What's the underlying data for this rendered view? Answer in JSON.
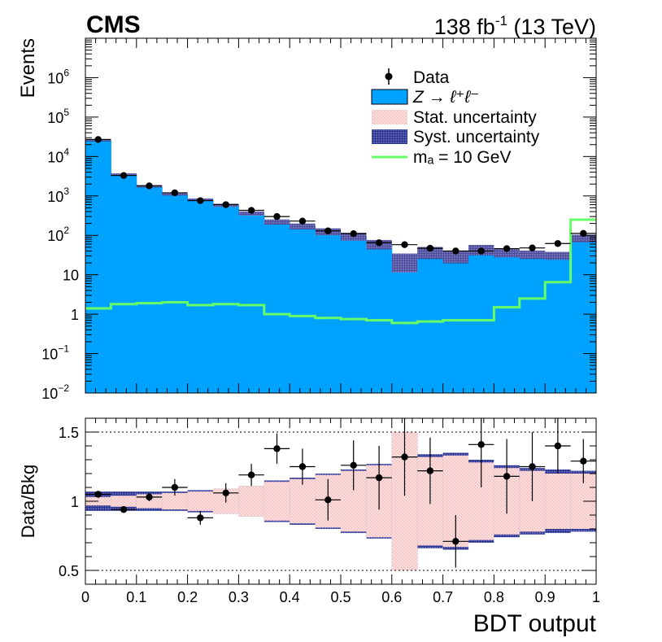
{
  "header": {
    "experiment": "CMS",
    "lumi_main": "138 fb",
    "lumi_sup": "-1",
    "lumi_tail": " (13 TeV)"
  },
  "colors": {
    "background_fill": "#00a2ff",
    "signal_line": "#66ff66",
    "stat_band": "#f8cccc",
    "syst_band": "#3a3f9a",
    "data_marker": "#000000"
  },
  "legend": {
    "data": "Data",
    "background": "Z → ℓ⁺ℓ⁻",
    "stat": "Stat. uncertainty",
    "syst": "Syst. uncertainty",
    "signal": "mₐ = 10 GeV"
  },
  "chart_data": [
    {
      "type": "bar",
      "panel": "main",
      "xlabel": "",
      "ylabel": "Events",
      "yscale": "log",
      "xlim": [
        0,
        1
      ],
      "ylim": [
        0.01,
        10000000
      ],
      "y_ticks": [
        {
          "value": 0.01,
          "base": "10",
          "exp": "−2"
        },
        {
          "value": 0.1,
          "base": "10",
          "exp": "−1"
        },
        {
          "value": 1,
          "base": "1",
          "exp": ""
        },
        {
          "value": 10,
          "base": "10",
          "exp": ""
        },
        {
          "value": 100,
          "base": "10",
          "exp": "2"
        },
        {
          "value": 1000,
          "base": "10",
          "exp": "3"
        },
        {
          "value": 10000,
          "base": "10",
          "exp": "4"
        },
        {
          "value": 100000,
          "base": "10",
          "exp": "5"
        },
        {
          "value": 1000000,
          "base": "10",
          "exp": "6"
        }
      ],
      "bin_edges": [
        0,
        0.05,
        0.1,
        0.15,
        0.2,
        0.25,
        0.3,
        0.35,
        0.4,
        0.45,
        0.5,
        0.55,
        0.6,
        0.65,
        0.7,
        0.75,
        0.8,
        0.85,
        0.9,
        0.95,
        1.0
      ],
      "series": [
        {
          "name": "Z → ℓ⁺ℓ⁻",
          "kind": "stacked_fill",
          "values": [
            26000,
            3500,
            1750,
            1100,
            800,
            580,
            360,
            220,
            170,
            125,
            95,
            60,
            23,
            38,
            30,
            44,
            37,
            33,
            31,
            85
          ]
        },
        {
          "name": "Stat. uncertainty (relative, ±)",
          "kind": "band",
          "values": [
            0.03,
            0.04,
            0.05,
            0.06,
            0.07,
            0.09,
            0.11,
            0.14,
            0.16,
            0.19,
            0.22,
            0.26,
            0.5,
            0.32,
            0.33,
            0.28,
            0.24,
            0.22,
            0.2,
            0.2
          ]
        },
        {
          "name": "Syst. uncertainty (relative, ±)",
          "kind": "band",
          "values": [
            0.07,
            0.07,
            0.07,
            0.07,
            0.08,
            0.09,
            0.11,
            0.15,
            0.17,
            0.2,
            0.23,
            0.27,
            0.5,
            0.34,
            0.35,
            0.3,
            0.26,
            0.24,
            0.23,
            0.22
          ]
        },
        {
          "name": "mₐ = 10 GeV",
          "kind": "step_line",
          "values": [
            1.4,
            1.8,
            1.9,
            2.0,
            1.7,
            1.8,
            1.7,
            1.0,
            0.9,
            0.8,
            0.75,
            0.7,
            0.6,
            0.65,
            0.7,
            0.7,
            1.5,
            2.5,
            6.5,
            250
          ]
        },
        {
          "name": "Data",
          "kind": "points",
          "x": [
            0.025,
            0.075,
            0.125,
            0.175,
            0.225,
            0.275,
            0.325,
            0.375,
            0.425,
            0.475,
            0.525,
            0.575,
            0.625,
            0.675,
            0.725,
            0.775,
            0.825,
            0.875,
            0.925,
            0.975
          ],
          "values": [
            27000,
            3300,
            1800,
            1200,
            760,
            600,
            430,
            300,
            230,
            130,
            110,
            65,
            58,
            47,
            40,
            40,
            46,
            48,
            62,
            112
          ]
        }
      ]
    },
    {
      "type": "scatter",
      "panel": "ratio",
      "xlabel": "BDT output",
      "ylabel": "Data/Bkg",
      "xlim": [
        0,
        1
      ],
      "ylim": [
        0.4,
        1.6
      ],
      "x_ticks": [
        "0",
        "0.1",
        "0.2",
        "0.3",
        "0.4",
        "0.5",
        "0.6",
        "0.7",
        "0.8",
        "0.9",
        "1"
      ],
      "y_ticks": [
        "0.5",
        "1",
        "1.5"
      ],
      "reference_lines": [
        0.5,
        1.5
      ],
      "x": [
        0.025,
        0.075,
        0.125,
        0.175,
        0.225,
        0.275,
        0.325,
        0.375,
        0.425,
        0.475,
        0.525,
        0.575,
        0.625,
        0.675,
        0.725,
        0.775,
        0.825,
        0.875,
        0.925,
        0.975
      ],
      "values": [
        1.05,
        0.94,
        1.03,
        1.1,
        0.88,
        1.06,
        1.19,
        1.38,
        1.25,
        1.01,
        1.26,
        1.17,
        1.32,
        1.22,
        0.71,
        1.41,
        1.18,
        1.25,
        1.4,
        1.29
      ],
      "errors": [
        0.01,
        0.02,
        0.03,
        0.06,
        0.05,
        0.07,
        0.08,
        0.11,
        0.13,
        0.15,
        0.18,
        0.23,
        0.28,
        0.24,
        0.19,
        0.31,
        0.27,
        0.25,
        0.2,
        0.16
      ]
    }
  ]
}
